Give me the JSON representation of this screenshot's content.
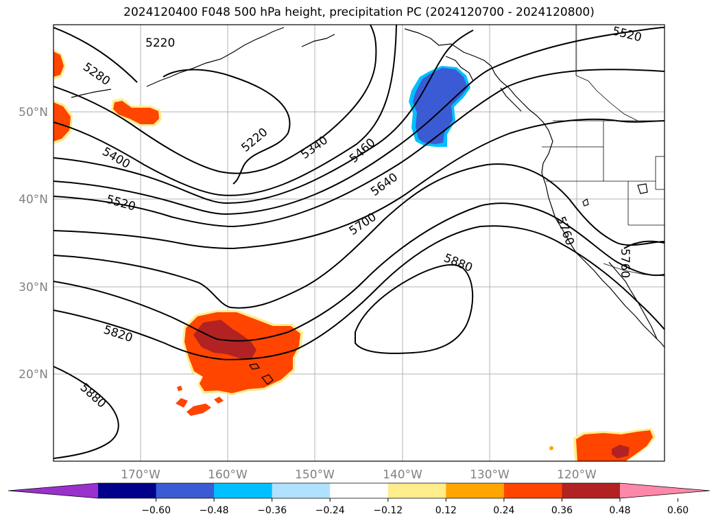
{
  "title": "2024120400 F048 500 hPa height, precipitation PC (2024120700 - 2024120800)",
  "map": {
    "lat_labels": [
      "50°N",
      "40°N",
      "30°N",
      "20°N"
    ],
    "lon_labels": [
      "170°W",
      "160°W",
      "150°W",
      "140°W",
      "130°W",
      "120°W"
    ],
    "contour_labels": [
      "5220",
      "5280",
      "5220",
      "5340",
      "5460",
      "5520",
      "5400",
      "5520",
      "5640",
      "5700",
      "5880",
      "5760",
      "5760",
      "5820",
      "5880"
    ],
    "precip_colors": {
      "dark_red": "#b22222",
      "red_orange": "#ff4500",
      "orange": "#ffa500",
      "yellow": "#ffec8b",
      "blue": "#3a5bd4",
      "light_blue": "#00bfff"
    }
  },
  "colorbar": {
    "tick_labels": [
      "−0.60",
      "−0.48",
      "−0.36",
      "−0.24",
      "−0.12",
      "0.12",
      "0.24",
      "0.36",
      "0.48",
      "0.60"
    ],
    "colors": [
      "#9932cc",
      "#00008b",
      "#3a5bd4",
      "#00bfff",
      "#b0e2ff",
      "#ffffff",
      "#ffec8b",
      "#ffa500",
      "#ff4500",
      "#b22222",
      "#ff88aa"
    ]
  }
}
